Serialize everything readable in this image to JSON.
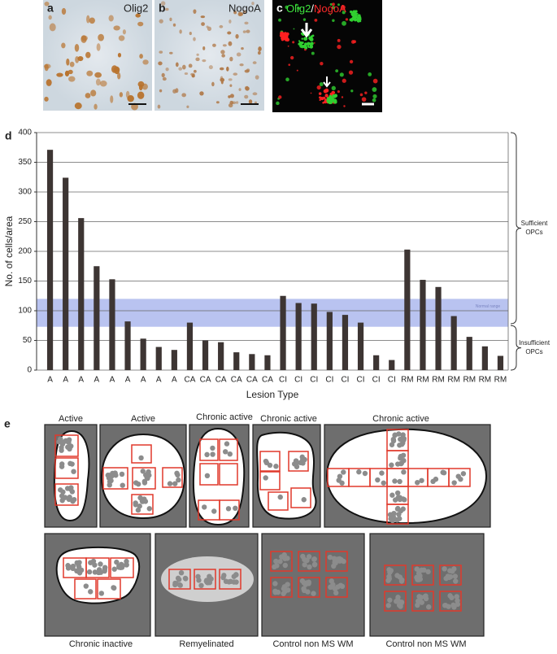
{
  "panels": {
    "a": {
      "label": "a",
      "stain": "Olig2"
    },
    "b": {
      "label": "b",
      "stain": "NogoA"
    },
    "c": {
      "label": "c",
      "stain_green": "Olig2",
      "separator": "/",
      "stain_red": "NogoA"
    },
    "d": {
      "label": "d"
    },
    "e": {
      "label": "e",
      "diagrams": [
        "Active",
        "Active",
        "Chronic active",
        "Chronic active",
        "Chronic active",
        "Chronic inactive",
        "Remyelinated",
        "Control non MS WM",
        "Control non MS WM"
      ]
    }
  },
  "chart_data": {
    "type": "bar",
    "ylabel": "No. of cells/area",
    "xlabel": "Lesion Type",
    "categories": [
      "A",
      "A",
      "A",
      "A",
      "A",
      "A",
      "A",
      "A",
      "A",
      "CA",
      "CA",
      "CA",
      "CA",
      "CA",
      "CA",
      "CI",
      "CI",
      "CI",
      "CI",
      "CI",
      "CI",
      "CI",
      "CI",
      "RM",
      "RM",
      "RM",
      "RM",
      "RM",
      "RM",
      "RM"
    ],
    "values": [
      371,
      324,
      256,
      175,
      153,
      82,
      53,
      39,
      34,
      80,
      50,
      47,
      30,
      27,
      25,
      125,
      113,
      112,
      98,
      93,
      80,
      25,
      17,
      203,
      152,
      140,
      91,
      56,
      40,
      24
    ],
    "color": "#3d3533",
    "ylim": [
      0,
      400
    ],
    "yticks": [
      0,
      50,
      100,
      150,
      200,
      250,
      300,
      350,
      400
    ],
    "grid": true,
    "normal_range": {
      "label": "Normal range",
      "range": [
        73,
        120
      ],
      "color": "#b9c3f0"
    },
    "brackets": [
      {
        "lines": [
          "Sufficient",
          "OPCs"
        ],
        "range": [
          78,
          400
        ]
      },
      {
        "lines": [
          "Insufficient",
          "OPCs"
        ],
        "range": [
          0,
          75
        ]
      }
    ]
  }
}
